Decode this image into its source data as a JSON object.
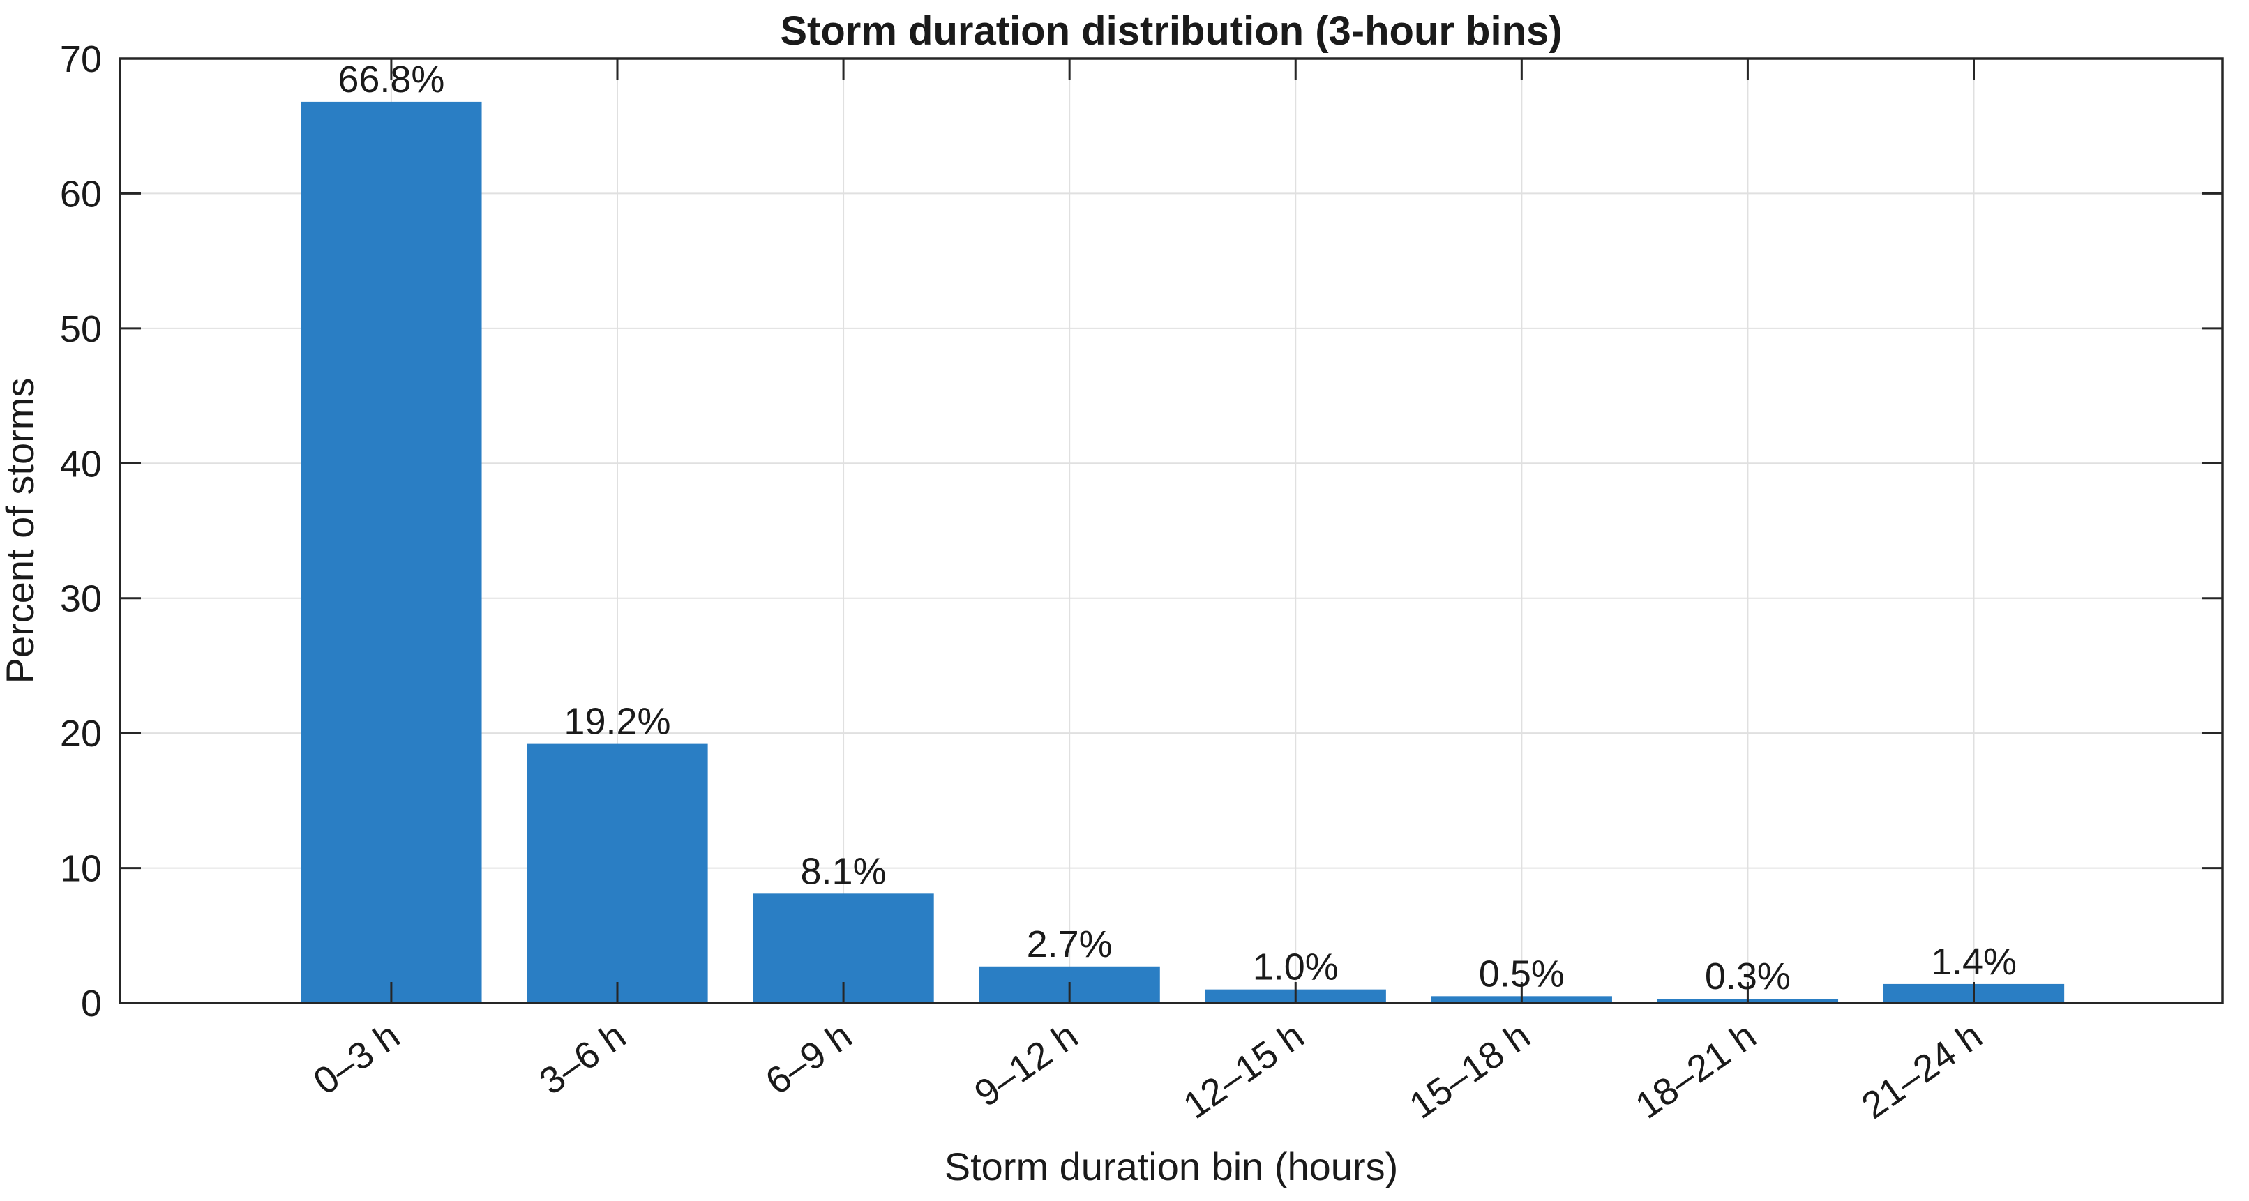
{
  "page": {
    "background_color": "#ffffff"
  },
  "chart_data": {
    "type": "bar",
    "title": "Storm duration distribution (3-hour bins)",
    "xlabel": "Storm duration bin (hours)",
    "ylabel": "Percent of storms",
    "categories": [
      "0–3 h",
      "3–6 h",
      "6–9 h",
      "9–12 h",
      "12–15 h",
      "15–18 h",
      "18–21 h",
      "21–24 h"
    ],
    "values": [
      66.8,
      19.2,
      8.1,
      2.7,
      1.0,
      0.5,
      0.3,
      1.4
    ],
    "value_labels": [
      "66.8%",
      "19.2%",
      "8.1%",
      "2.7%",
      "1.0%",
      "0.5%",
      "0.3%",
      "1.4%"
    ],
    "ylim": [
      0,
      70
    ],
    "yticks": [
      0,
      10,
      20,
      30,
      40,
      50,
      60,
      70
    ],
    "ytick_labels": [
      "0",
      "10",
      "20",
      "30",
      "40",
      "50",
      "60",
      "70"
    ],
    "grid": true,
    "legend": "none",
    "xtick_label_rotation_deg": 35,
    "bar_color": "#2A7EC4",
    "axis_color": "#262626",
    "grid_color": "#E0E0E0",
    "text_color": "#1A1A1A",
    "background_color": "#FFFFFF"
  }
}
